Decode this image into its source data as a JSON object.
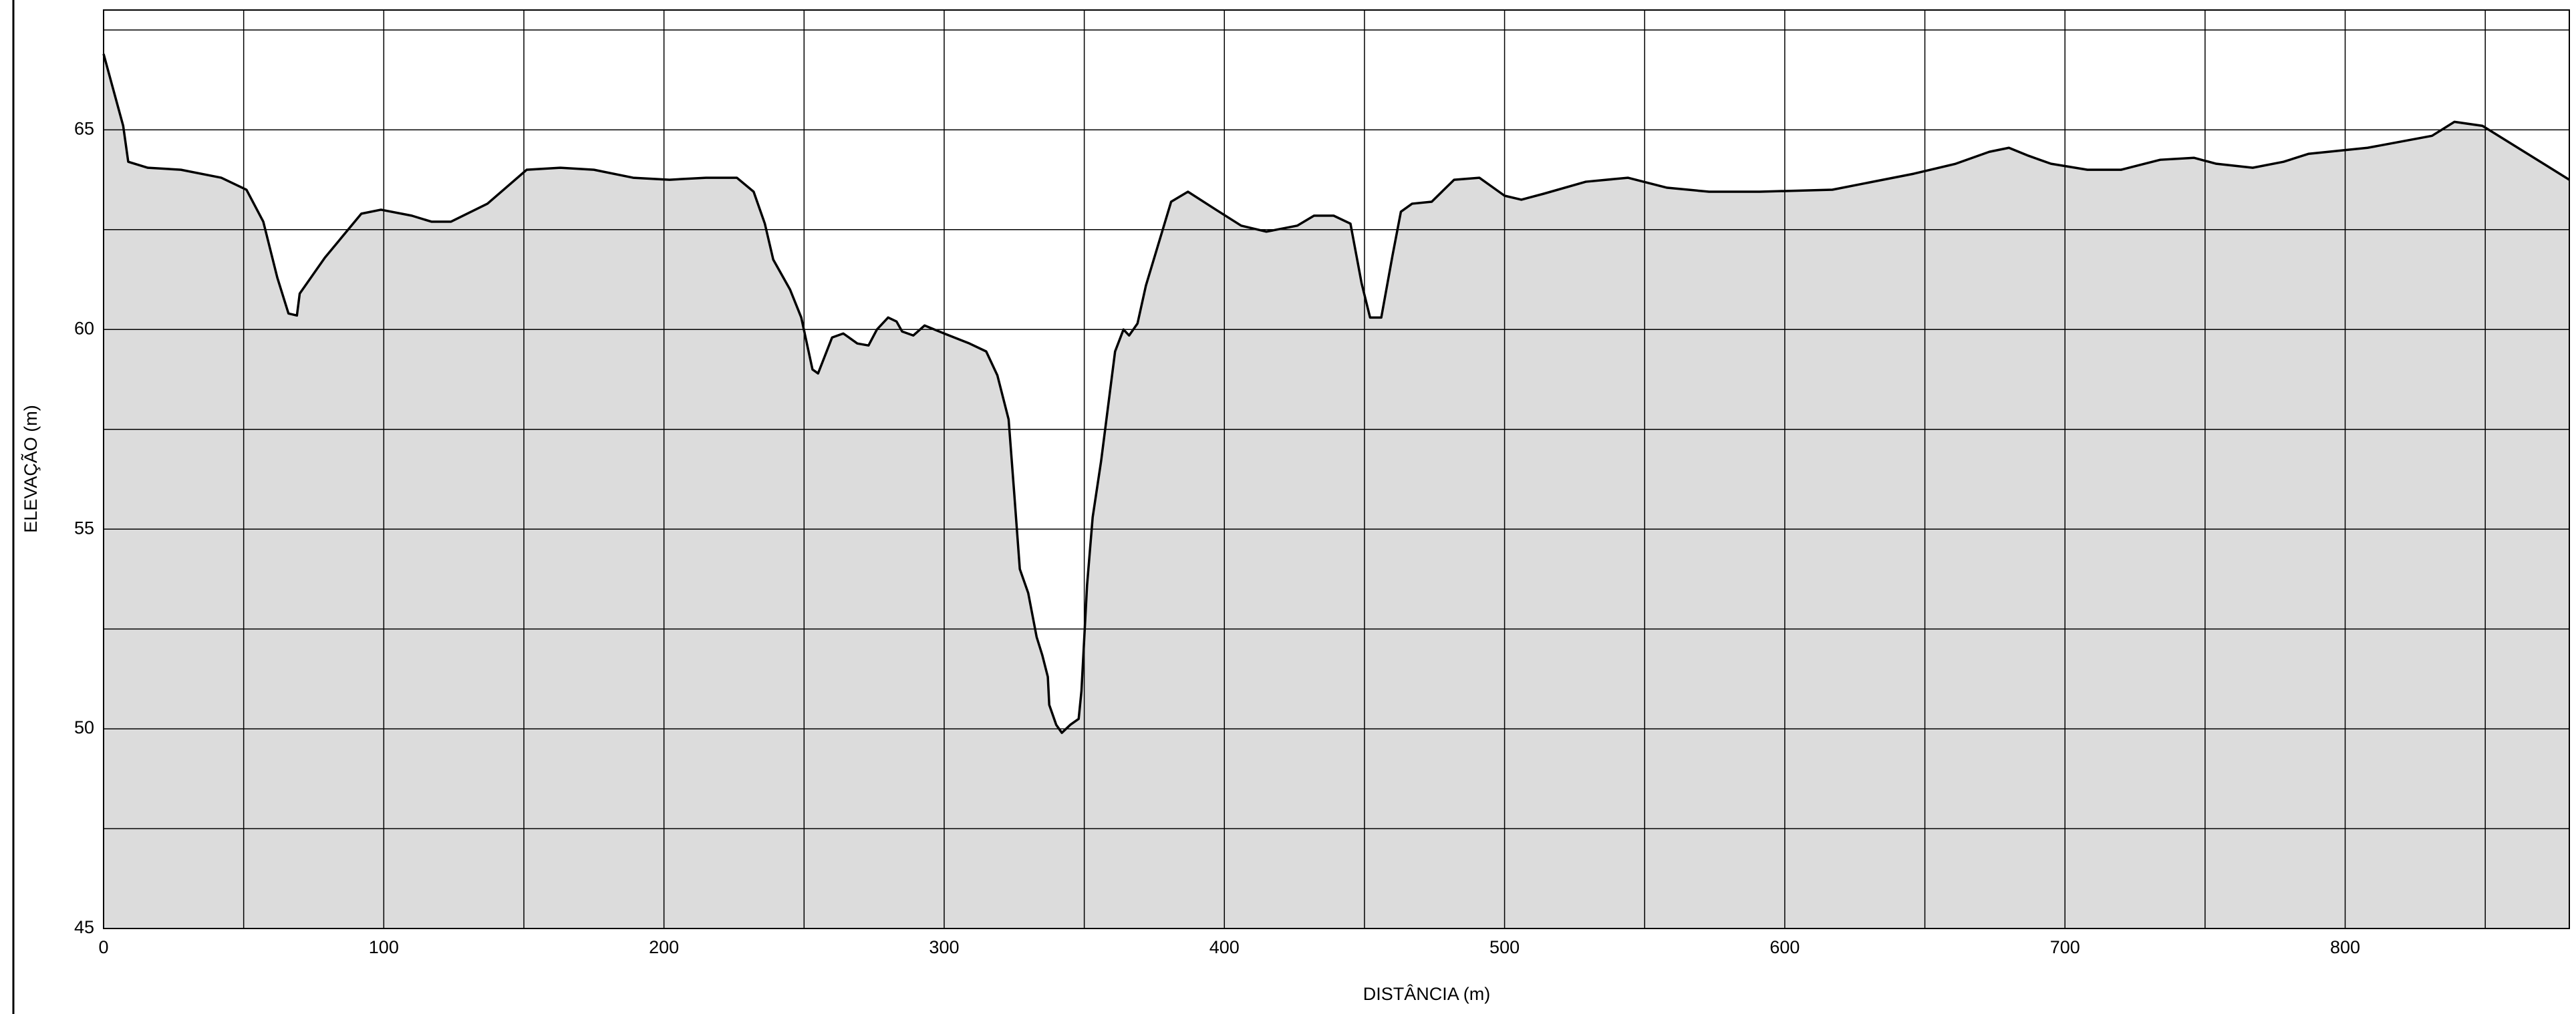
{
  "chart_data": {
    "type": "area",
    "xlabel": "DISTÂNCIA (m)",
    "ylabel": "ELEVAÇÃO (m)",
    "x": [
      0,
      7,
      8.8,
      15.8,
      27.6,
      42,
      51,
      57,
      62,
      66,
      69,
      70,
      79,
      92,
      99,
      110,
      117,
      124,
      137,
      151,
      163,
      175,
      189,
      202,
      215,
      226,
      232,
      236,
      239,
      245,
      249,
      253,
      255,
      260,
      264,
      269,
      273,
      276,
      280,
      283,
      285,
      289,
      293,
      300,
      309,
      315,
      319,
      323,
      325,
      327,
      330,
      333,
      335,
      337,
      337.5,
      340,
      342,
      345,
      348,
      349,
      351,
      353,
      356,
      359,
      361,
      364,
      366,
      369,
      372,
      381,
      387,
      397,
      406,
      415,
      426,
      432,
      439,
      445,
      449,
      452,
      456,
      460,
      463,
      467,
      474,
      482,
      491,
      500,
      506,
      514,
      529,
      544,
      558,
      573,
      591,
      617,
      646,
      661,
      673,
      680,
      687,
      695,
      708,
      720,
      734,
      746,
      754,
      767,
      778,
      787,
      808,
      831,
      839,
      849,
      880
    ],
    "values": [
      66.9,
      65.1,
      64.2,
      64.05,
      64.0,
      63.8,
      63.5,
      62.7,
      61.3,
      60.4,
      60.35,
      60.9,
      61.8,
      62.9,
      63.0,
      62.85,
      62.7,
      62.7,
      63.15,
      64.0,
      64.05,
      64.0,
      63.8,
      63.75,
      63.8,
      63.8,
      63.45,
      62.65,
      61.75,
      61.0,
      60.3,
      59.0,
      58.9,
      59.8,
      59.9,
      59.65,
      59.6,
      60.0,
      60.3,
      60.2,
      59.95,
      59.85,
      60.1,
      59.9,
      59.65,
      59.45,
      58.85,
      57.75,
      55.9,
      54.0,
      53.4,
      52.3,
      51.85,
      51.3,
      50.6,
      50.1,
      49.9,
      50.1,
      50.25,
      50.95,
      53.6,
      55.3,
      56.7,
      58.35,
      59.45,
      60.0,
      59.85,
      60.15,
      61.1,
      63.2,
      63.45,
      63.0,
      62.6,
      62.45,
      62.6,
      62.85,
      62.85,
      62.65,
      61.15,
      60.3,
      60.3,
      61.85,
      62.95,
      63.15,
      63.2,
      63.75,
      63.8,
      63.35,
      63.25,
      63.4,
      63.7,
      63.8,
      63.55,
      63.45,
      63.45,
      63.5,
      63.9,
      64.15,
      64.45,
      64.55,
      64.35,
      64.15,
      64.0,
      64.0,
      64.25,
      64.3,
      64.15,
      64.05,
      64.2,
      64.4,
      64.55,
      64.85,
      65.2,
      65.1,
      63.75
    ],
    "color": "#000000",
    "fill": "#dcdcdc",
    "xlim": [
      0,
      880
    ],
    "xticks": [
      0,
      100,
      200,
      300,
      400,
      500,
      600,
      700,
      800
    ],
    "minor_xticks": [
      50,
      150,
      250,
      350,
      450,
      550,
      650,
      750,
      850
    ],
    "ylim": [
      45,
      68
    ],
    "yticks": [
      45,
      50,
      55,
      60,
      65
    ],
    "minor_yticks": [
      47.5,
      52.5,
      57.5,
      62.5,
      67.5
    ],
    "grid": true
  }
}
